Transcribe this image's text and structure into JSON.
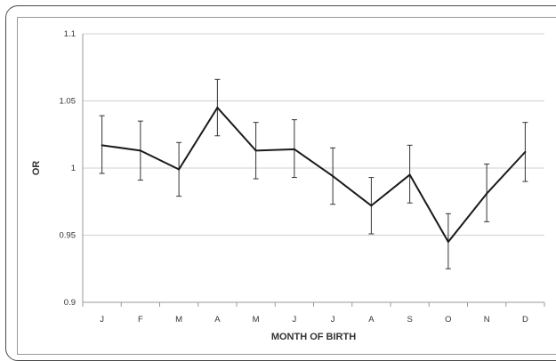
{
  "chart_data": {
    "type": "line",
    "xlabel": "MONTH OF BIRTH",
    "ylabel": "OR",
    "categories": [
      "J",
      "F",
      "M",
      "A",
      "M",
      "J",
      "J",
      "A",
      "S",
      "O",
      "N",
      "D"
    ],
    "series": [
      {
        "values": [
          1.017,
          1.013,
          0.999,
          1.045,
          1.013,
          1.014,
          0.994,
          0.972,
          0.995,
          0.945,
          0.981,
          1.012
        ],
        "lower": [
          0.996,
          0.991,
          0.979,
          1.024,
          0.992,
          0.993,
          0.973,
          0.951,
          0.974,
          0.925,
          0.96,
          0.99
        ],
        "upper": [
          1.039,
          1.035,
          1.019,
          1.066,
          1.034,
          1.036,
          1.015,
          0.993,
          1.017,
          0.966,
          1.003,
          1.034
        ]
      }
    ],
    "ylim": [
      0.9,
      1.1
    ],
    "yticks": [
      "0.9",
      "0.95",
      "1",
      "1.05",
      "1.1"
    ],
    "grid": true,
    "error_bars": true,
    "line_color": "#1a1a1a",
    "grid_color": "#d0d0d0",
    "axis_color": "#9a9a9a"
  }
}
